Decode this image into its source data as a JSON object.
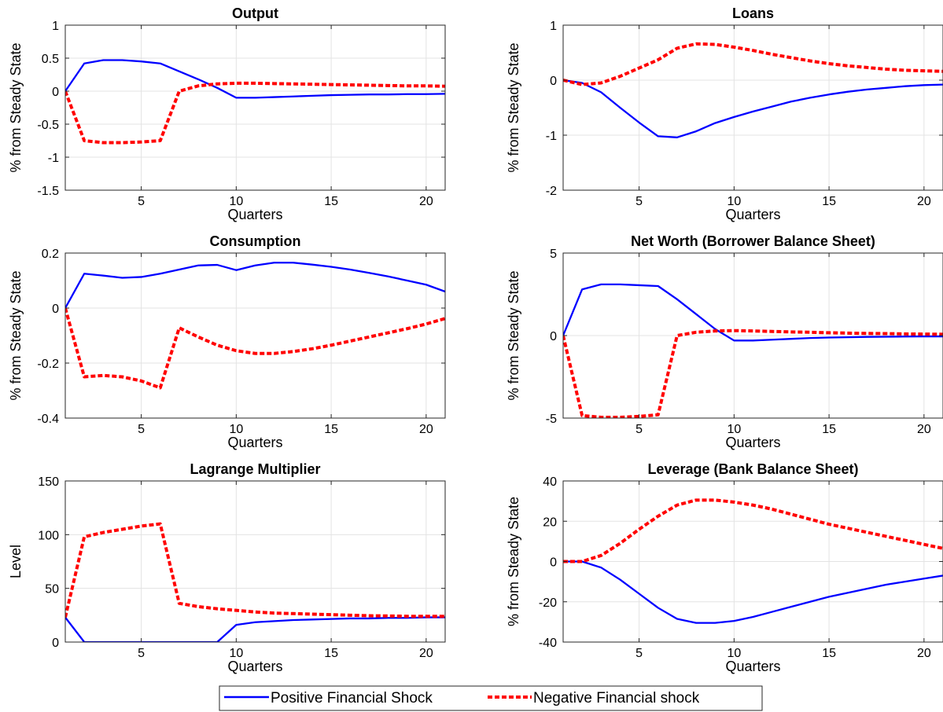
{
  "colors": {
    "positive": "#0000ff",
    "negative": "#ff0000",
    "grid": "#e3e3e3",
    "axis": "#262626"
  },
  "legend": {
    "placement": "bottom-center",
    "entries": [
      "Positive Financial Shock",
      "Negative Financial shock"
    ]
  },
  "chart_data": [
    {
      "type": "line",
      "title": "Output",
      "xlabel": "Quarters",
      "ylabel": "% from Steady State",
      "xlim": [
        1,
        21
      ],
      "ylim": [
        -1.5,
        1
      ],
      "xticks": [
        5,
        10,
        15,
        20
      ],
      "yticks": [
        -1.5,
        -1,
        -0.5,
        0,
        0.5,
        1
      ],
      "ytick_labels": [
        "-1.5",
        "-1",
        "-0.5",
        "0",
        "0.5",
        "1"
      ],
      "grid": true,
      "x": [
        1,
        2,
        3,
        4,
        5,
        6,
        7,
        8,
        9,
        10,
        11,
        12,
        13,
        14,
        15,
        16,
        17,
        18,
        19,
        20,
        21
      ],
      "series": [
        {
          "name": "Positive Financial Shock",
          "values": [
            0,
            0.42,
            0.47,
            0.47,
            0.45,
            0.42,
            0.3,
            0.18,
            0.05,
            -0.1,
            -0.1,
            -0.09,
            -0.08,
            -0.07,
            -0.06,
            -0.055,
            -0.05,
            -0.05,
            -0.045,
            -0.045,
            -0.04
          ]
        },
        {
          "name": "Negative Financial shock",
          "values": [
            0,
            -0.75,
            -0.78,
            -0.78,
            -0.77,
            -0.75,
            0,
            0.08,
            0.11,
            0.12,
            0.12,
            0.115,
            0.11,
            0.105,
            0.1,
            0.095,
            0.09,
            0.085,
            0.08,
            0.08,
            0.075
          ]
        }
      ]
    },
    {
      "type": "line",
      "title": "Loans",
      "xlabel": "Quarters",
      "ylabel": "% from Steady State",
      "xlim": [
        1,
        21
      ],
      "ylim": [
        -2,
        1
      ],
      "xticks": [
        5,
        10,
        15,
        20
      ],
      "yticks": [
        -2,
        -1,
        0,
        1
      ],
      "ytick_labels": [
        "-2",
        "-1",
        "0",
        "1"
      ],
      "grid": true,
      "x": [
        1,
        2,
        3,
        4,
        5,
        6,
        7,
        8,
        9,
        10,
        11,
        12,
        13,
        14,
        15,
        16,
        17,
        18,
        19,
        20,
        21
      ],
      "series": [
        {
          "name": "Positive Financial Shock",
          "values": [
            0,
            -0.05,
            -0.22,
            -0.5,
            -0.77,
            -1.02,
            -1.04,
            -0.93,
            -0.78,
            -0.67,
            -0.57,
            -0.48,
            -0.39,
            -0.32,
            -0.26,
            -0.21,
            -0.17,
            -0.14,
            -0.11,
            -0.09,
            -0.08
          ]
        },
        {
          "name": "Negative Financial shock",
          "values": [
            0,
            -0.08,
            -0.05,
            0.07,
            0.22,
            0.37,
            0.58,
            0.66,
            0.65,
            0.6,
            0.54,
            0.47,
            0.41,
            0.35,
            0.3,
            0.26,
            0.23,
            0.2,
            0.18,
            0.17,
            0.16
          ]
        }
      ]
    },
    {
      "type": "line",
      "title": "Consumption",
      "xlabel": "Quarters",
      "ylabel": "% from Steady State",
      "xlim": [
        1,
        21
      ],
      "ylim": [
        -0.4,
        0.2
      ],
      "xticks": [
        5,
        10,
        15,
        20
      ],
      "yticks": [
        -0.4,
        -0.2,
        0,
        0.2
      ],
      "ytick_labels": [
        "-0.4",
        "-0.2",
        "0",
        "0.2"
      ],
      "grid": true,
      "x": [
        1,
        2,
        3,
        4,
        5,
        6,
        7,
        8,
        9,
        10,
        11,
        12,
        13,
        14,
        15,
        16,
        17,
        18,
        19,
        20,
        21
      ],
      "series": [
        {
          "name": "Positive Financial Shock",
          "values": [
            0,
            0.125,
            0.118,
            0.11,
            0.113,
            0.125,
            0.14,
            0.155,
            0.157,
            0.138,
            0.155,
            0.165,
            0.165,
            0.158,
            0.15,
            0.14,
            0.128,
            0.115,
            0.1,
            0.085,
            0.06
          ]
        },
        {
          "name": "Negative Financial shock",
          "values": [
            0,
            -0.25,
            -0.245,
            -0.25,
            -0.265,
            -0.29,
            -0.072,
            -0.105,
            -0.135,
            -0.155,
            -0.165,
            -0.165,
            -0.158,
            -0.148,
            -0.135,
            -0.12,
            -0.105,
            -0.09,
            -0.075,
            -0.058,
            -0.038
          ]
        }
      ]
    },
    {
      "type": "line",
      "title": "Net Worth (Borrower Balance Sheet)",
      "xlabel": "Quarters",
      "ylabel": "% from Steady State",
      "xlim": [
        1,
        21
      ],
      "ylim": [
        -5,
        5
      ],
      "xticks": [
        5,
        10,
        15,
        20
      ],
      "yticks": [
        -5,
        0,
        5
      ],
      "ytick_labels": [
        "-5",
        "0",
        "5"
      ],
      "grid": true,
      "x": [
        1,
        2,
        3,
        4,
        5,
        6,
        7,
        8,
        9,
        10,
        11,
        12,
        13,
        14,
        15,
        16,
        17,
        18,
        19,
        20,
        21
      ],
      "series": [
        {
          "name": "Positive Financial Shock",
          "values": [
            0,
            2.8,
            3.1,
            3.1,
            3.05,
            3.0,
            2.2,
            1.3,
            0.4,
            -0.3,
            -0.3,
            -0.25,
            -0.2,
            -0.15,
            -0.12,
            -0.1,
            -0.08,
            -0.07,
            -0.06,
            -0.05,
            -0.05
          ]
        },
        {
          "name": "Negative Financial shock",
          "values": [
            0,
            -4.85,
            -4.95,
            -4.95,
            -4.9,
            -4.8,
            0,
            0.2,
            0.28,
            0.3,
            0.28,
            0.25,
            0.22,
            0.2,
            0.17,
            0.15,
            0.13,
            0.12,
            0.1,
            0.09,
            0.08
          ]
        }
      ]
    },
    {
      "type": "line",
      "title": "Lagrange Multiplier",
      "xlabel": "Quarters",
      "ylabel": "Level",
      "xlim": [
        1,
        21
      ],
      "ylim": [
        0,
        150
      ],
      "xticks": [
        5,
        10,
        15,
        20
      ],
      "yticks": [
        0,
        50,
        100,
        150
      ],
      "ytick_labels": [
        "0",
        "50",
        "100",
        "150"
      ],
      "grid": true,
      "x": [
        1,
        2,
        3,
        4,
        5,
        6,
        7,
        8,
        9,
        10,
        11,
        12,
        13,
        14,
        15,
        16,
        17,
        18,
        19,
        20,
        21
      ],
      "series": [
        {
          "name": "Positive Financial Shock",
          "values": [
            23,
            0,
            0,
            0,
            0,
            0,
            0,
            0,
            0,
            16,
            18.5,
            19.5,
            20.5,
            21,
            21.5,
            22,
            22,
            22.5,
            22.5,
            23,
            23
          ]
        },
        {
          "name": "Negative Financial shock",
          "values": [
            23,
            98,
            102,
            105,
            108,
            110,
            36,
            33,
            31,
            29.5,
            28,
            27,
            26.5,
            26,
            25.5,
            25,
            24.5,
            24.3,
            24,
            24,
            24
          ]
        }
      ]
    },
    {
      "type": "line",
      "title": "Leverage (Bank Balance Sheet)",
      "xlabel": "Quarters",
      "ylabel": "% from Steady State",
      "xlim": [
        1,
        21
      ],
      "ylim": [
        -40,
        40
      ],
      "xticks": [
        5,
        10,
        15,
        20
      ],
      "yticks": [
        -40,
        -20,
        0,
        20,
        40
      ],
      "ytick_labels": [
        "-40",
        "-20",
        "0",
        "20",
        "40"
      ],
      "grid": true,
      "x": [
        1,
        2,
        3,
        4,
        5,
        6,
        7,
        8,
        9,
        10,
        11,
        12,
        13,
        14,
        15,
        16,
        17,
        18,
        19,
        20,
        21
      ],
      "series": [
        {
          "name": "Positive Financial Shock",
          "values": [
            0,
            0,
            -3,
            -9,
            -16,
            -23,
            -28.5,
            -30.5,
            -30.5,
            -29.5,
            -27.5,
            -25,
            -22.5,
            -20,
            -17.5,
            -15.5,
            -13.5,
            -11.5,
            -10,
            -8.5,
            -7
          ]
        },
        {
          "name": "Negative Financial shock",
          "values": [
            0,
            0,
            3,
            9,
            16,
            22.5,
            28,
            30.5,
            30.5,
            29.5,
            28,
            26,
            23.5,
            21,
            18.5,
            16.5,
            14.5,
            12.5,
            10.5,
            8.5,
            6.5
          ]
        }
      ]
    }
  ]
}
